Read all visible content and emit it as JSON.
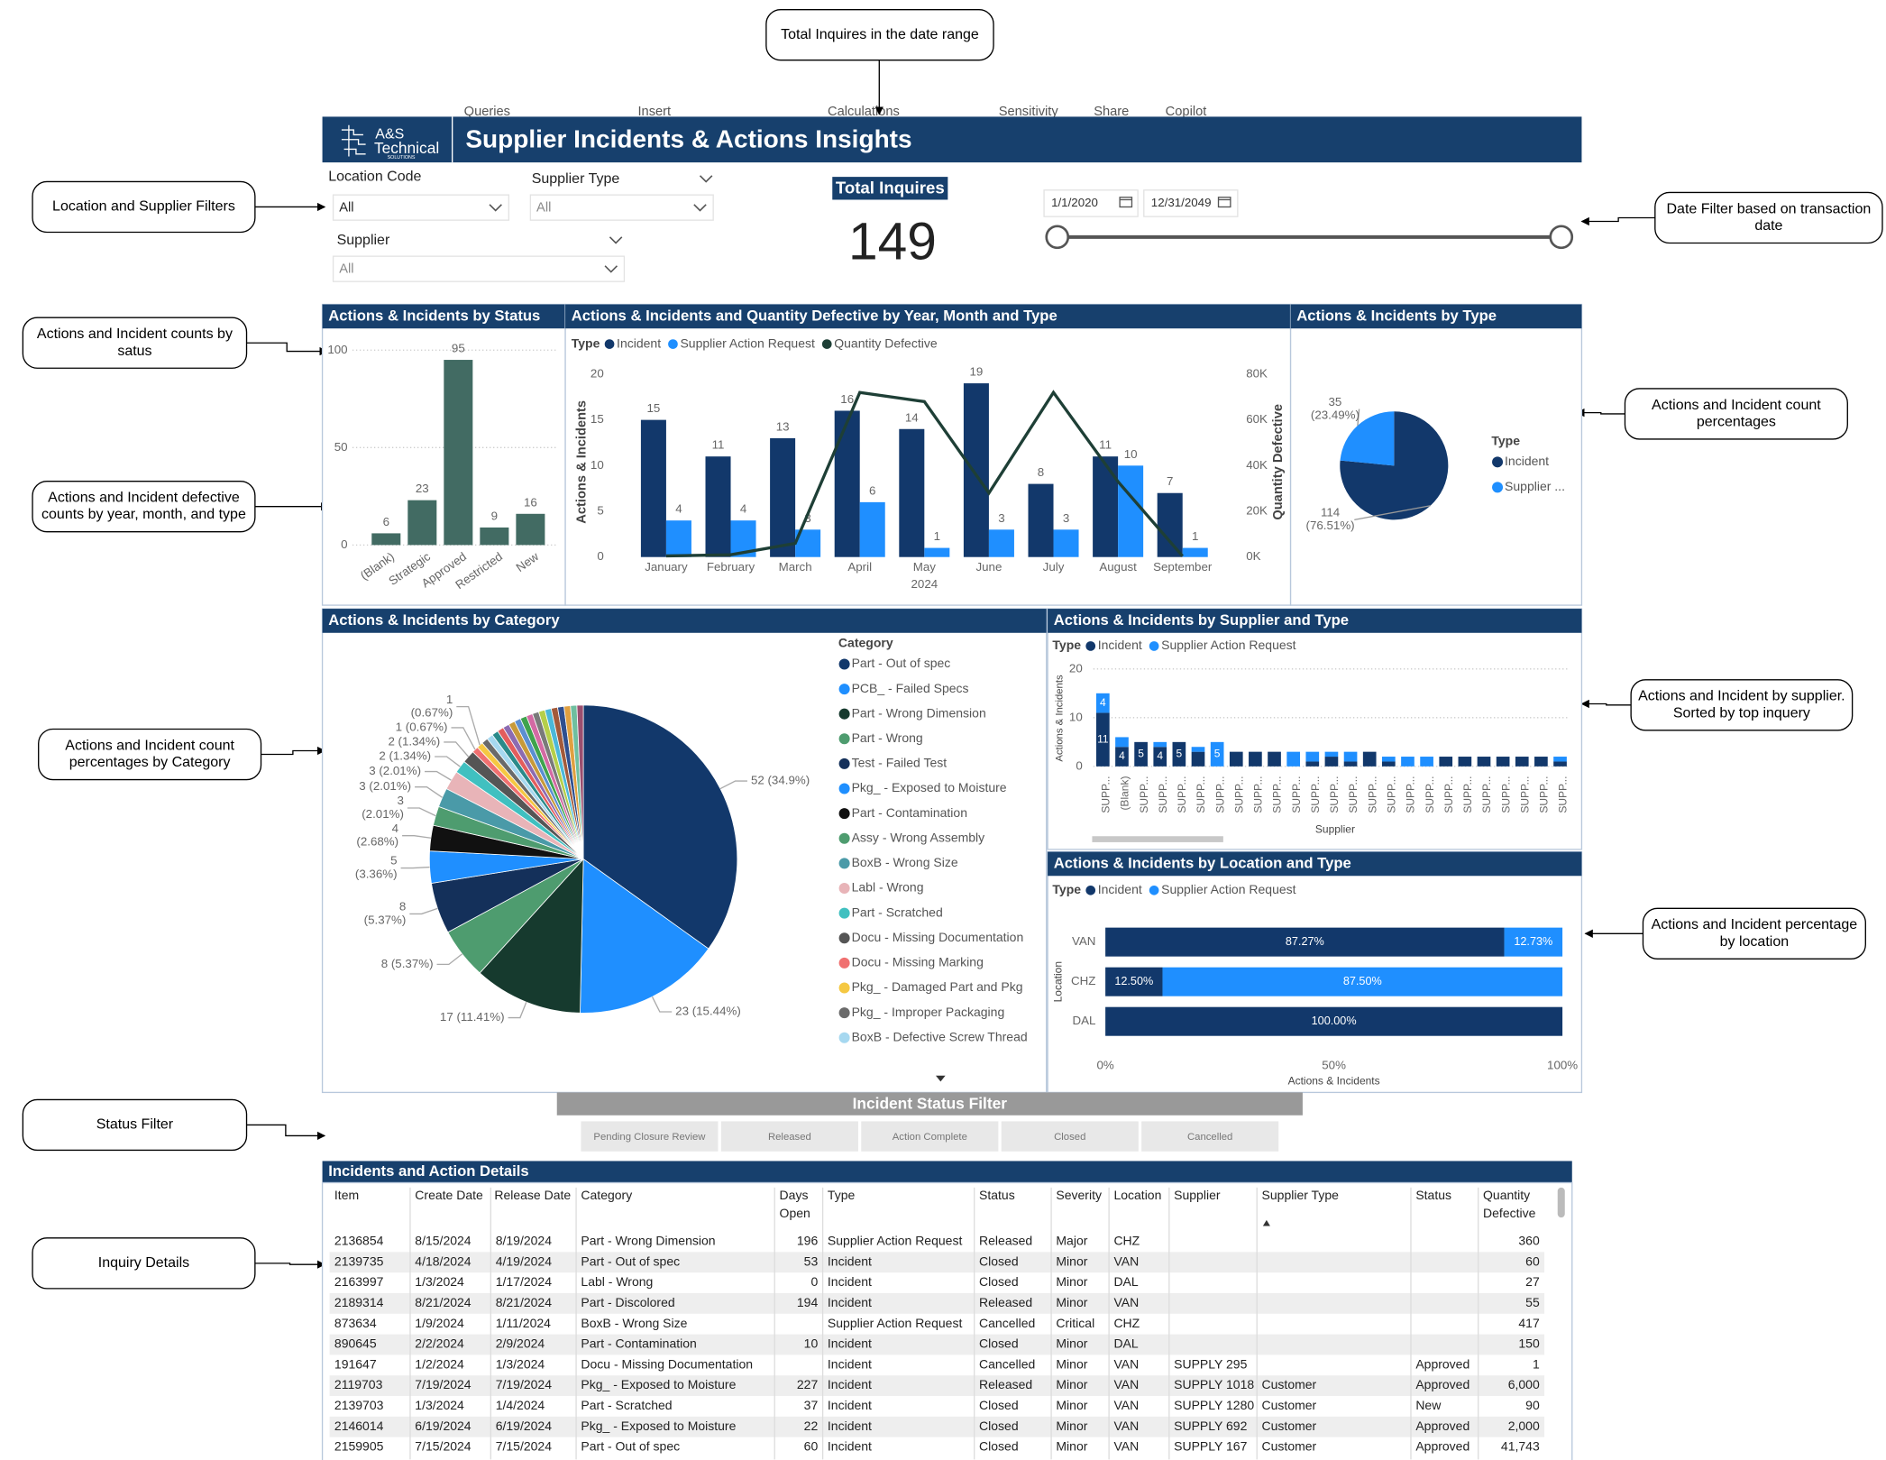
{
  "ribbon": [
    "Queries",
    "Insert",
    "Calculations",
    "Sensitivity",
    "Share",
    "Copilot"
  ],
  "header": {
    "logo": [
      "A&S",
      "Technical",
      "SOLUTIONS"
    ],
    "title": "Supplier Incidents & Actions Insights"
  },
  "annotations": [
    {
      "lines": [
        "Total Inquires in the date range"
      ]
    },
    {
      "lines": [
        "Location and Supplier Filters"
      ]
    },
    {
      "lines": [
        "Date Filter based on transaction",
        "date"
      ]
    },
    {
      "lines": [
        "Actions and Incident counts by",
        "satus"
      ]
    },
    {
      "lines": [
        "Actions and Incident count",
        "percentages"
      ]
    },
    {
      "lines": [
        "Actions and Incident defective",
        "counts by year, month, and type"
      ]
    },
    {
      "lines": [
        "Actions and Incident count",
        "percentages by Category"
      ]
    },
    {
      "lines": [
        "Actions and Incident by supplier.",
        "Sorted by top inquery"
      ]
    },
    {
      "lines": [
        "Actions and Incident percentage",
        "by location"
      ]
    },
    {
      "lines": [
        "Status Filter"
      ]
    },
    {
      "lines": [
        "Inquiry Details"
      ]
    }
  ],
  "filters": {
    "location_code": {
      "label": "Location Code",
      "value": "All"
    },
    "supplier_type": {
      "label": "Supplier Type",
      "value": "All"
    },
    "supplier": {
      "label": "Supplier",
      "value": "All"
    }
  },
  "card": {
    "label": "Total Inquires",
    "value": 149
  },
  "date_range": {
    "start": "1/1/2020",
    "end": "12/31/2049"
  },
  "chart_data": [
    {
      "type": "bar",
      "title": "Actions & Incidents by Status",
      "categories": [
        "(Blank)",
        "Strategic",
        "Approved",
        "Restricted",
        "New"
      ],
      "values": [
        6,
        23,
        95,
        9,
        16
      ],
      "color": "#426b63",
      "ylim": [
        0,
        100
      ],
      "yticks": [
        0,
        50,
        100
      ],
      "grid": true
    },
    {
      "type": "combo",
      "title": "Actions & Incidents and Quantity Defective by Year, Month and Type",
      "legend_title": "Type",
      "categories": [
        "January",
        "February",
        "March",
        "April",
        "May",
        "June",
        "July",
        "August",
        "September"
      ],
      "x_group": "2024",
      "y_label": "Actions & Incidents",
      "y2_label": "Quantity Defective",
      "series": [
        {
          "name": "Incident",
          "color": "#12386b",
          "kind": "bar",
          "values": [
            15,
            11,
            13,
            16,
            14,
            19,
            8,
            11,
            7
          ]
        },
        {
          "name": "Supplier Action Request",
          "color": "#1f8fff",
          "kind": "bar",
          "values": [
            4,
            4,
            3,
            6,
            1,
            3,
            3,
            10,
            1
          ]
        },
        {
          "name": "Quantity Defective",
          "color": "#1e3f36",
          "kind": "line",
          "axis": "y2",
          "values": [
            500,
            1000,
            6000,
            72000,
            68000,
            28000,
            72000,
            33000,
            400
          ]
        }
      ],
      "ylim": [
        0,
        20
      ],
      "yticks": [
        0,
        5,
        10,
        15,
        20
      ],
      "y2lim": [
        0,
        80000
      ],
      "y2ticks": [
        {
          "value": 0,
          "label": "0K"
        },
        {
          "value": 20000,
          "label": "20K"
        },
        {
          "value": 40000,
          "label": "40K"
        },
        {
          "value": 60000,
          "label": "60K"
        },
        {
          "value": 80000,
          "label": "80K"
        }
      ]
    },
    {
      "type": "pie",
      "title": "Actions & Incidents by Type",
      "legend_title": "Type",
      "categories": [
        "Incident",
        "Supplier ..."
      ],
      "values": [
        114,
        35
      ],
      "value_labels": [
        [
          "114",
          "(76.51%)"
        ],
        [
          "35",
          "(23.49%)"
        ]
      ],
      "colors": [
        "#12386b",
        "#1f8fff"
      ]
    },
    {
      "type": "pie",
      "title": "Actions & Incidents by Category",
      "legend_title": "Category",
      "categories": [
        "Part - Out of spec",
        "PCB_ - Failed Specs",
        "Part - Wrong Dimension",
        "Part - Wrong",
        "Test - Failed Test",
        "Pkg_ - Exposed to Moisture",
        "Part - Contamination",
        "Assy - Wrong Assembly",
        "BoxB - Wrong Size",
        "Labl - Wrong",
        "Part - Scratched",
        "Docu - Missing Documentation",
        "Docu - Missing Marking",
        "Pkg_ - Damaged Part and Pkg",
        "Pkg_ - Improper Packaging",
        "BoxB - Defective Screw Thread",
        null,
        null,
        null,
        null,
        null,
        null,
        null,
        null,
        null,
        null,
        null,
        null,
        null,
        null,
        null
      ],
      "values": [
        52,
        23,
        17,
        8,
        8,
        5,
        4,
        3,
        3,
        3,
        2,
        2,
        1,
        1,
        1,
        1,
        1,
        1,
        1,
        1,
        1,
        1,
        1,
        1,
        1,
        1,
        1,
        1,
        1,
        1,
        1
      ],
      "value_labels": [
        "52 (34.9%)",
        "23 (15.44%)",
        "17 (11.41%)",
        "8 (5.37%)",
        [
          "8",
          "(5.37%)"
        ],
        [
          "5",
          "(3.36%)"
        ],
        [
          "4",
          "(2.68%)"
        ],
        [
          "3",
          "(2.01%)"
        ],
        "3 (2.01%)",
        "3 (2.01%)",
        "2 (1.34%)",
        "2 (1.34%)",
        "1 (0.67%)",
        [
          "1",
          "(0.67%)"
        ],
        null,
        null,
        null,
        null,
        null,
        null,
        null,
        null,
        null,
        null,
        null,
        null,
        null,
        null,
        null,
        null,
        null
      ],
      "colors": [
        "#12386b",
        "#1f8fff",
        "#163a2e",
        "#4e9c6f",
        "#14305a",
        "#1f8fff",
        "#111111",
        "#4e9c6f",
        "#4a9aa8",
        "#e8b4b8",
        "#40c0c0",
        "#555555",
        "#f07070",
        "#f5c842",
        "#6a6a6a",
        "#a6d8f0",
        "#2a8a8a",
        "#e35d5d",
        "#8c6bb1",
        "#c79a3a",
        "#5b8fd1",
        "#3fa34d",
        "#d36aa3",
        "#7a7a7a",
        "#b5cf4a",
        "#4bb8d8",
        "#a25a3a",
        "#2f4f8f",
        "#e0a040",
        "#6fbf9f",
        "#9a4f6f"
      ]
    },
    {
      "type": "stacked_bar",
      "title": "Actions & Incidents by Supplier and Type",
      "legend_title": "Type",
      "categories": [
        "SUPP...",
        "(Blank)",
        "SUPP...",
        "SUPP...",
        "SUPP...",
        "SUPP...",
        "SUPP...",
        "SUPP...",
        "SUPP...",
        "SUPP...",
        "SUPP...",
        "SUPP...",
        "SUPP...",
        "SUPP...",
        "SUPP...",
        "SUPP...",
        "SUPP...",
        "SUPP...",
        "SUPP...",
        "SUPP...",
        "SUPP...",
        "SUPP...",
        "SUPP...",
        "SUPP...",
        "SUPP..."
      ],
      "x_label": "Supplier",
      "y_label": "Actions & Incidents",
      "series": [
        {
          "name": "Incident",
          "color": "#12386b",
          "values": [
            11,
            4,
            5,
            4,
            5,
            3,
            0,
            3,
            3,
            3,
            0,
            1,
            2,
            1,
            3,
            1,
            0,
            0,
            2,
            2,
            2,
            2,
            2,
            2,
            1
          ]
        },
        {
          "name": "Supplier Action Request",
          "color": "#1f8fff",
          "values": [
            4,
            2,
            0,
            1,
            0,
            1,
            5,
            0,
            0,
            0,
            3,
            2,
            1,
            2,
            0,
            1,
            2,
            2,
            0,
            0,
            0,
            0,
            0,
            0,
            1
          ]
        }
      ],
      "ylim": [
        0,
        20
      ],
      "yticks": [
        0,
        10,
        20
      ],
      "grid": true
    },
    {
      "type": "stacked_hbar_100",
      "title": "Actions & Incidents by Location and Type",
      "legend_title": "Type",
      "categories": [
        "VAN",
        "CHZ",
        "DAL"
      ],
      "y_label": "Location",
      "x_label": "Actions & Incidents",
      "series": [
        {
          "name": "Incident",
          "color": "#12386b",
          "values": [
            87.27,
            12.5,
            100
          ],
          "value_labels": [
            "87.27%",
            "12.50%",
            "100.00%"
          ]
        },
        {
          "name": "Supplier Action Request",
          "color": "#1f8fff",
          "values": [
            12.73,
            87.5,
            0
          ],
          "value_labels": [
            "12.73%",
            "87.50%",
            null
          ]
        }
      ],
      "xlim": [
        0,
        100
      ],
      "xticks": [
        {
          "value": 0,
          "label": "0%"
        },
        {
          "value": 50,
          "label": "50%"
        },
        {
          "value": 100,
          "label": "100%"
        }
      ]
    }
  ],
  "status_filter": {
    "title": "Incident Status Filter",
    "buttons": [
      "Pending Closure Review",
      "Released",
      "Action Complete",
      "Closed",
      "Cancelled"
    ]
  },
  "table": {
    "title": "Incidents and Action Details",
    "columns": [
      "Item",
      "Create Date",
      "Release Date",
      "Category",
      [
        "Days",
        "Open"
      ],
      "Type",
      "Status",
      "Severity",
      "Location",
      "Supplier",
      "Supplier Type",
      "Status",
      [
        "Quantity",
        "Defective"
      ]
    ],
    "rows": [
      [
        "2136854",
        "8/15/2024",
        "8/19/2024",
        "Part - Wrong Dimension",
        "196",
        "Supplier Action Request",
        "Released",
        "Major",
        "CHZ",
        null,
        null,
        null,
        "360"
      ],
      [
        "2139735",
        "4/18/2024",
        "4/19/2024",
        "Part - Out of spec",
        "53",
        "Incident",
        "Closed",
        "Minor",
        "VAN",
        null,
        null,
        null,
        "60"
      ],
      [
        "2163997",
        "1/3/2024",
        "1/17/2024",
        "Labl - Wrong",
        "0",
        "Incident",
        "Closed",
        "Minor",
        "DAL",
        null,
        null,
        null,
        "27"
      ],
      [
        "2189314",
        "8/21/2024",
        "8/21/2024",
        "Part - Discolored",
        "194",
        "Incident",
        "Released",
        "Minor",
        "VAN",
        null,
        null,
        null,
        "55"
      ],
      [
        "873634",
        "1/9/2024",
        "1/11/2024",
        "BoxB - Wrong Size",
        null,
        "Supplier Action Request",
        "Cancelled",
        "Critical",
        "CHZ",
        null,
        null,
        null,
        "417"
      ],
      [
        "890645",
        "2/2/2024",
        "2/9/2024",
        "Part - Contamination",
        "10",
        "Incident",
        "Closed",
        "Minor",
        "DAL",
        null,
        null,
        null,
        "150"
      ],
      [
        "191647",
        "1/2/2024",
        "1/3/2024",
        "Docu - Missing Documentation",
        null,
        "Incident",
        "Cancelled",
        "Minor",
        "VAN",
        "SUPPLY 295",
        null,
        "Approved",
        "1"
      ],
      [
        "2119703",
        "7/19/2024",
        "7/19/2024",
        "Pkg_ - Exposed to Moisture",
        "227",
        "Incident",
        "Released",
        "Minor",
        "VAN",
        "SUPPLY 1018",
        "Customer",
        "Approved",
        "6,000"
      ],
      [
        "2139703",
        "1/3/2024",
        "1/4/2024",
        "Part - Scratched",
        "37",
        "Incident",
        "Closed",
        "Minor",
        "VAN",
        "SUPPLY 1280",
        "Customer",
        "New",
        "90"
      ],
      [
        "2146014",
        "6/19/2024",
        "6/19/2024",
        "Pkg_ - Exposed to Moisture",
        "22",
        "Incident",
        "Closed",
        "Minor",
        "VAN",
        "SUPPLY 692",
        "Customer",
        "Approved",
        "2,000"
      ],
      [
        "2159905",
        "7/15/2024",
        "7/15/2024",
        "Part - Out of spec",
        "60",
        "Incident",
        "Closed",
        "Minor",
        "VAN",
        "SUPPLY 167",
        "Customer",
        "Approved",
        "41,743"
      ]
    ]
  }
}
